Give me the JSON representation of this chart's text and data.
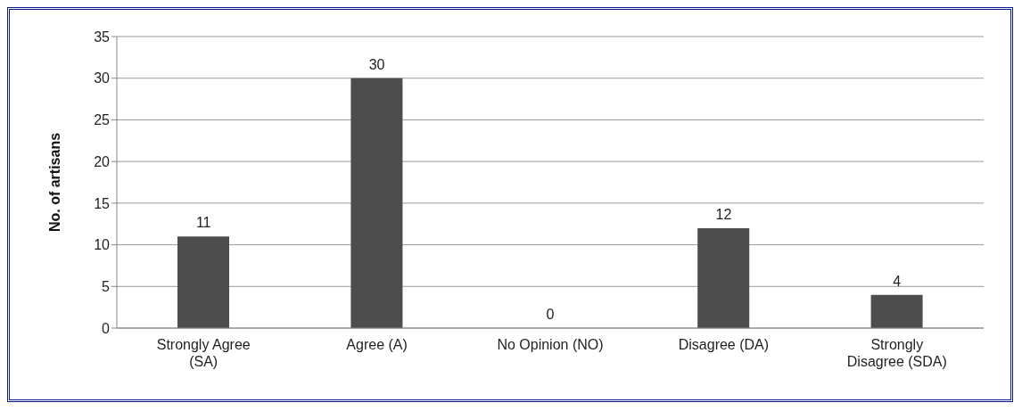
{
  "chart_data": {
    "type": "bar",
    "ylabel": "No. of artisans",
    "categories": [
      "Strongly Agree (SA)",
      "Agree (A)",
      "No Opinion (NO)",
      "Disagree (DA)",
      "Strongly Disagree (SDA)"
    ],
    "values": [
      11,
      30,
      0,
      12,
      4
    ],
    "color": "#4d4d4d",
    "ylim": [
      0,
      35
    ],
    "yticks": [
      0,
      5,
      10,
      15,
      20,
      25,
      30,
      35
    ],
    "grid": "y",
    "data_labels": true
  }
}
